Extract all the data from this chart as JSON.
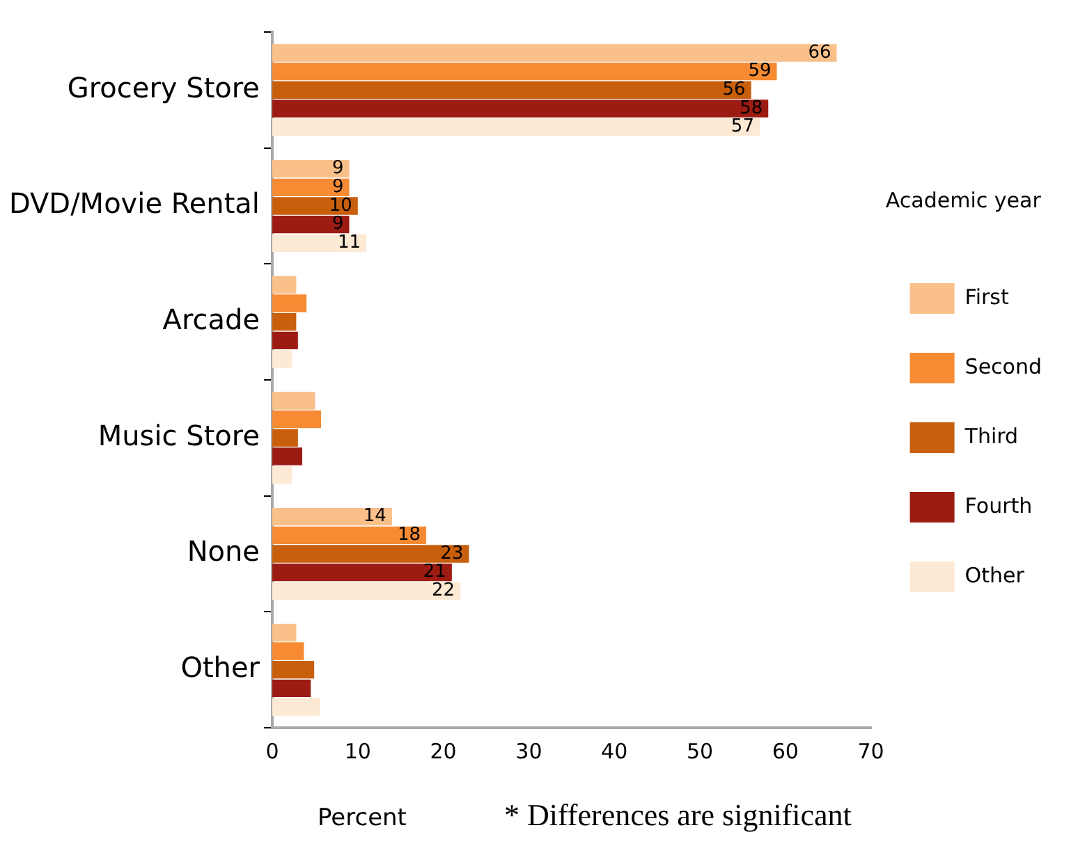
{
  "chart_data": {
    "type": "bar",
    "orientation": "horizontal",
    "categories": [
      "Grocery Store",
      "DVD/Movie Rental",
      "Arcade",
      "Music Store",
      "None",
      "Other"
    ],
    "series": [
      {
        "name": "First",
        "color": "#f9c08a",
        "values": [
          66,
          9,
          2.8,
          5,
          14,
          2.8
        ],
        "value_labels": [
          "66",
          "9",
          null,
          null,
          "14",
          null
        ]
      },
      {
        "name": "Second",
        "color": "#f68b33",
        "values": [
          59,
          9,
          4,
          5.7,
          18,
          3.7
        ],
        "value_labels": [
          "59",
          "9",
          null,
          null,
          "18",
          null
        ]
      },
      {
        "name": "Third",
        "color": "#c85f0c",
        "values": [
          56,
          10,
          2.8,
          3,
          23,
          4.9
        ],
        "value_labels": [
          "56",
          "10",
          null,
          null,
          "23",
          null
        ]
      },
      {
        "name": "Fourth",
        "color": "#9c1c14",
        "values": [
          58,
          9,
          3,
          3.5,
          21,
          4.5
        ],
        "value_labels": [
          "58",
          "9",
          null,
          null,
          "21",
          null
        ]
      },
      {
        "name": "Other",
        "color": "#fde9d4",
        "values": [
          57,
          11,
          2.3,
          2.3,
          22,
          5.6
        ],
        "value_labels": [
          "57",
          "11",
          null,
          null,
          "22",
          null
        ]
      }
    ],
    "xlim": [
      0,
      70
    ],
    "xticks": [
      0,
      10,
      20,
      30,
      40,
      50,
      60,
      70
    ],
    "grid": false,
    "legend": "right",
    "legend_title": "Academic year",
    "xlabel": "Percent",
    "annotations": [
      "* Differences are significant"
    ]
  }
}
